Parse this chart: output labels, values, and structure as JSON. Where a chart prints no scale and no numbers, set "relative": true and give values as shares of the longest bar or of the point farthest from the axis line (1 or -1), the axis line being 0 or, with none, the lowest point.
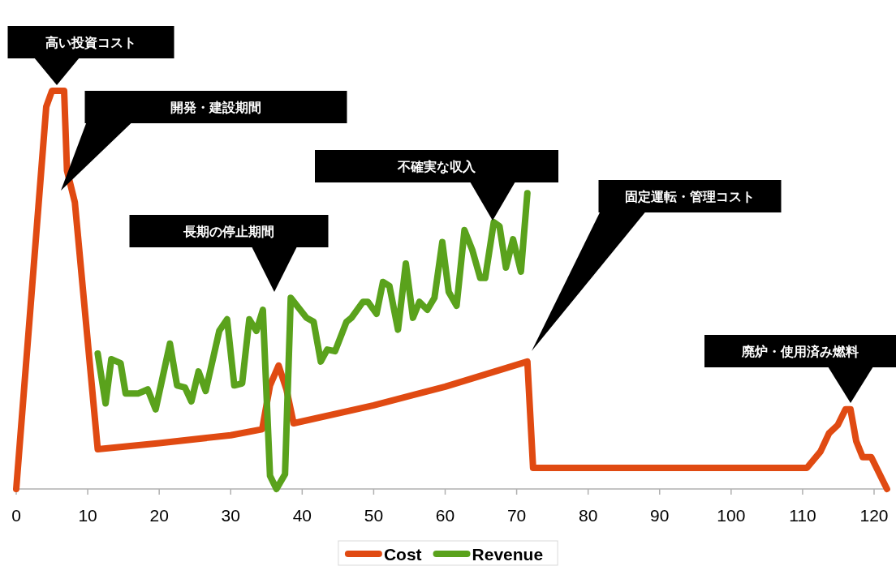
{
  "chart_data": {
    "type": "line",
    "relative": true,
    "xlim": [
      0,
      122
    ],
    "xticks": [
      0,
      10,
      20,
      30,
      40,
      50,
      60,
      70,
      80,
      90,
      100,
      110,
      120
    ],
    "legend": "bottom",
    "line_style": "solid",
    "marker": "none",
    "series": [
      {
        "name": "Cost",
        "color": "#e04a12",
        "x": [
          0,
          4.2,
          5,
          6.7,
          7.1,
          8.2,
          11.4,
          20,
          30,
          34.4,
          35.5,
          36.7,
          37.8,
          38.8,
          50,
          60,
          71.5,
          72.3,
          110.6,
          112.5,
          113.7,
          114.9,
          116,
          116.7,
          117.5,
          118.4,
          119.6,
          121.8
        ],
        "values": [
          0,
          0.96,
          1,
          1,
          0.8,
          0.72,
          0.1,
          0.115,
          0.135,
          0.15,
          0.26,
          0.31,
          0.25,
          0.165,
          0.21,
          0.257,
          0.32,
          0.053,
          0.053,
          0.094,
          0.14,
          0.16,
          0.2,
          0.2,
          0.12,
          0.08,
          0.08,
          0
        ]
      },
      {
        "name": "Revenue",
        "color": "#5aa21c",
        "x": [
          11.4,
          12.5,
          13.3,
          14.6,
          15.3,
          17.1,
          18.4,
          19.5,
          21.5,
          22.5,
          23.6,
          24.5,
          25.5,
          26.5,
          28.4,
          29.5,
          30.5,
          31.6,
          32.6,
          33.6,
          34.5,
          35.5,
          36.4,
          37.6,
          38.4,
          40.6,
          41.6,
          42.6,
          43.5,
          44.6,
          46.2,
          46.9,
          48.5,
          49.2,
          50.4,
          51.3,
          52.2,
          53.4,
          54.5,
          55.5,
          56.4,
          57.5,
          58.5,
          59.6,
          60.5,
          61.6,
          62.7,
          63.8,
          64.9,
          65.6,
          66.8,
          67.6,
          68.5,
          69.5,
          70.6,
          71.5
        ],
        "values": [
          0.34,
          0.215,
          0.326,
          0.316,
          0.24,
          0.24,
          0.25,
          0.2,
          0.365,
          0.26,
          0.255,
          0.22,
          0.295,
          0.246,
          0.397,
          0.426,
          0.26,
          0.265,
          0.426,
          0.397,
          0.45,
          0.033,
          0,
          0.037,
          0.48,
          0.43,
          0.42,
          0.32,
          0.35,
          0.346,
          0.42,
          0.43,
          0.47,
          0.47,
          0.44,
          0.52,
          0.51,
          0.4,
          0.566,
          0.43,
          0.47,
          0.45,
          0.48,
          0.62,
          0.495,
          0.46,
          0.65,
          0.6,
          0.53,
          0.53,
          0.67,
          0.66,
          0.556,
          0.627,
          0.546,
          0.743
        ]
      }
    ],
    "annotations": [
      "高い投資コスト",
      "開発・建設期間",
      "長期の停止期間",
      "不確実な収入",
      "固定運転・管理コスト",
      "廃炉・使用済み燃料"
    ]
  }
}
